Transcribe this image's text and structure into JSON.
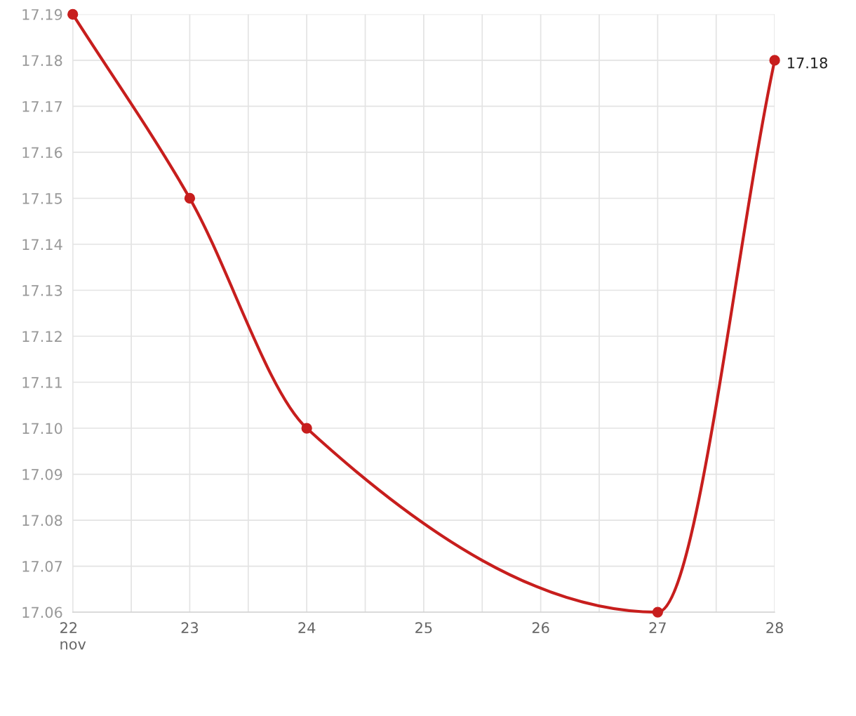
{
  "chart_data": {
    "type": "line",
    "x": [
      22,
      23,
      24,
      27,
      28
    ],
    "series": [
      {
        "color": "#c71e1d",
        "values": [
          17.19,
          17.15,
          17.1,
          17.06,
          17.18
        ],
        "value_labels": [
          null,
          null,
          null,
          null,
          "17.18"
        ]
      }
    ],
    "xlim": [
      22,
      28
    ],
    "xticks": [
      {
        "value": 22,
        "label": "22\nnov"
      },
      {
        "value": 22.5,
        "label": null
      },
      23,
      {
        "value": 23.5,
        "label": null
      },
      24,
      {
        "value": 24.5,
        "label": null
      },
      25,
      {
        "value": 25.5,
        "label": null
      },
      26,
      {
        "value": 26.5,
        "label": null
      },
      27,
      {
        "value": 27.5,
        "label": null
      },
      28
    ],
    "ylim": [
      17.06,
      17.19
    ],
    "yticks": [
      17.06,
      17.07,
      17.08,
      17.09,
      {
        "value": 17.1,
        "label": "17.10"
      },
      17.11,
      17.12,
      17.13,
      17.14,
      17.15,
      17.16,
      17.17,
      17.18,
      17.19
    ],
    "grid": true,
    "marker": "circle",
    "line_style": "solid"
  }
}
